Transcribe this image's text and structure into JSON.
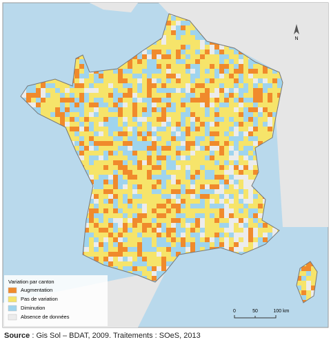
{
  "legend": {
    "title": "Variation par canton",
    "items": [
      {
        "label": "Augmentation",
        "color": "#f08a2c"
      },
      {
        "label": "Pas de variation",
        "color": "#f6e46a"
      },
      {
        "label": "Diminution",
        "color": "#9fd4ee"
      },
      {
        "label": "Absence de données",
        "color": "#ececec"
      }
    ]
  },
  "scale": {
    "labels": [
      "0",
      "50",
      "100 km"
    ]
  },
  "north": "N",
  "source": {
    "label": "Source",
    "text": ": Gis Sol – BDAT, 2009. Traitements : SOeS, 2013"
  }
}
